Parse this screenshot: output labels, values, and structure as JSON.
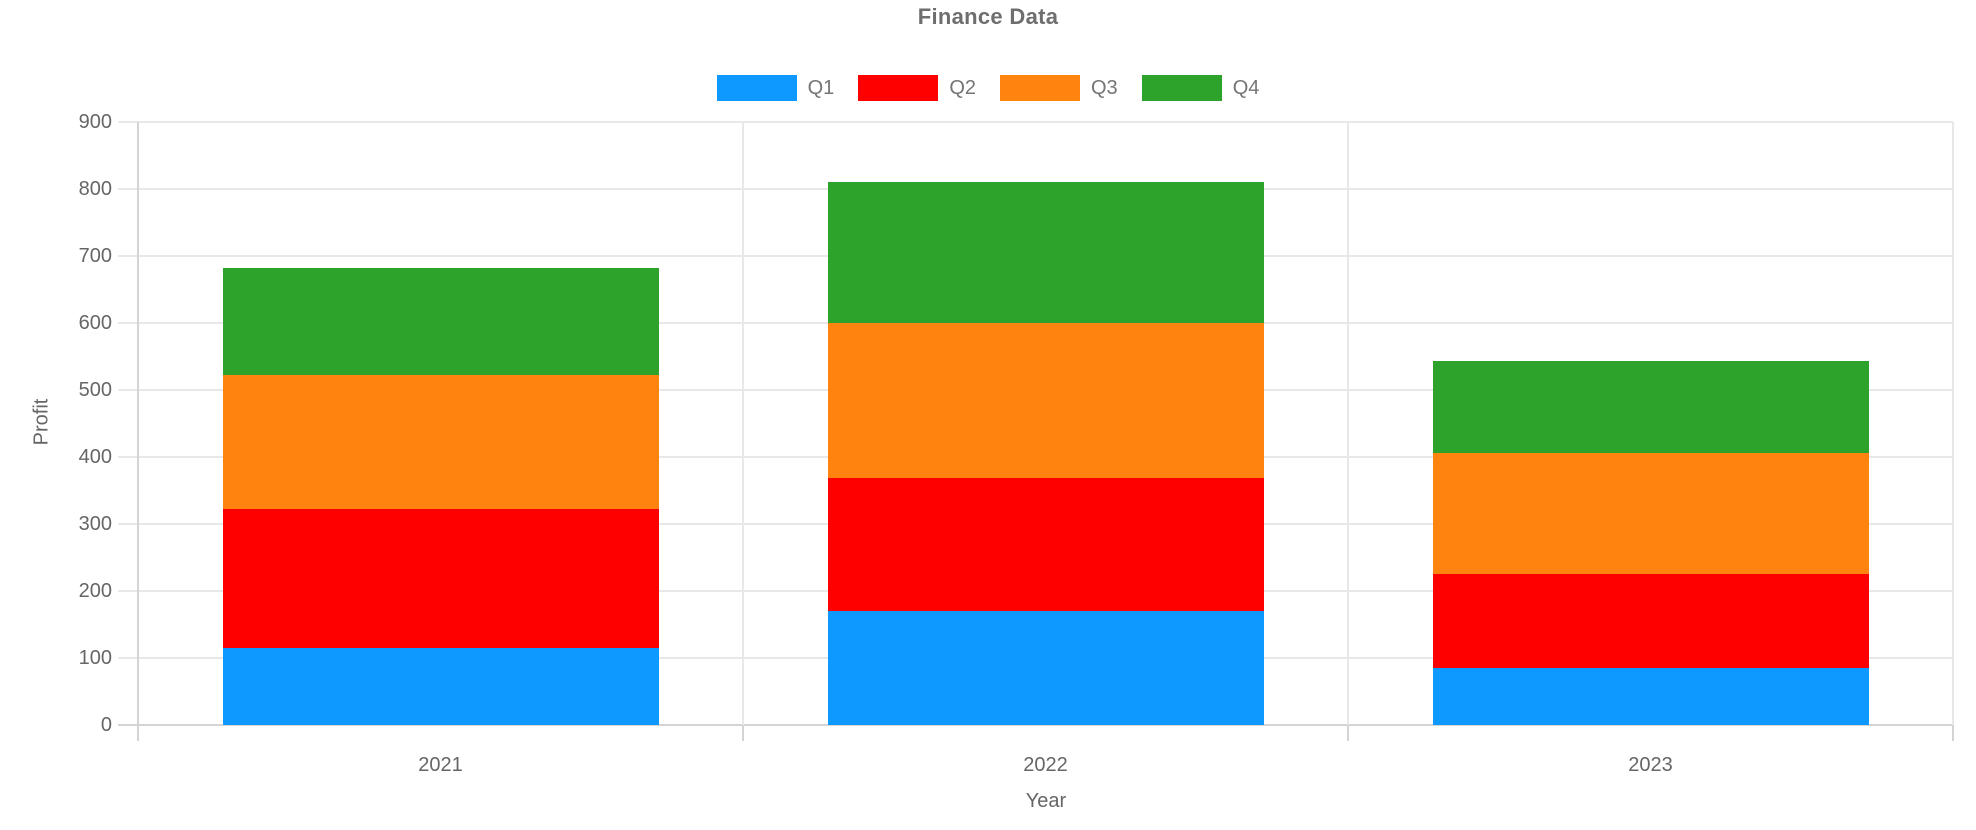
{
  "chart_data": {
    "type": "bar",
    "stacked": true,
    "title": "Finance Data",
    "xlabel": "Year",
    "ylabel": "Profit",
    "categories": [
      "2021",
      "2022",
      "2023"
    ],
    "series": [
      {
        "name": "Q1",
        "color": "#0D99FF",
        "values": [
          115,
          170,
          85
        ]
      },
      {
        "name": "Q2",
        "color": "#FF0000",
        "values": [
          207,
          198,
          140
        ]
      },
      {
        "name": "Q3",
        "color": "#FF830F",
        "values": [
          200,
          232,
          181
        ]
      },
      {
        "name": "Q4",
        "color": "#2EA32C",
        "values": [
          160,
          210,
          138
        ]
      }
    ],
    "totals": [
      682,
      810,
      544
    ],
    "ylim": [
      0,
      900
    ],
    "ytick_step": 100,
    "grid": true,
    "legend_position": "top",
    "colors": {
      "gridline": "#E8E8E8",
      "axis_line": "#D4D4D4",
      "tick_label": "#666666",
      "title_text": "#6E6E6E",
      "legend_text": "#757575"
    }
  }
}
